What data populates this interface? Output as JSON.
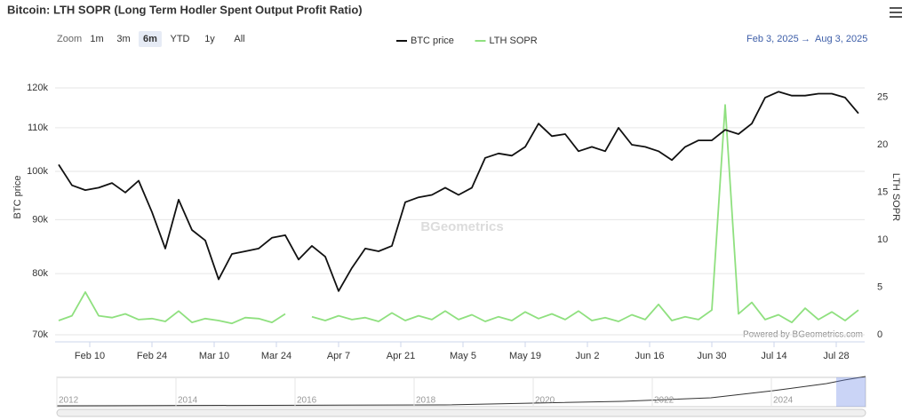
{
  "chart_data": {
    "type": "line",
    "title": "Bitcoin: LTH SOPR (Long Term Hodler Spent Output Profit Ratio)",
    "zoom_label": "Zoom",
    "zoom_buttons": [
      "1m",
      "3m",
      "6m",
      "YTD",
      "1y",
      "All"
    ],
    "zoom_active": "6m",
    "range_from": "Feb 3, 2025",
    "range_separator": "→",
    "range_to": "Aug 3, 2025",
    "watermark": "BGeometrics",
    "credit": "Powered by BGeometrics.com",
    "y_label": "BTC price",
    "y2_label": "LTH SOPR",
    "log_y": true,
    "grid": true,
    "legend": "top",
    "x": [
      "2025-02-03",
      "2025-02-06",
      "2025-02-09",
      "2025-02-12",
      "2025-02-15",
      "2025-02-18",
      "2025-02-21",
      "2025-02-24",
      "2025-02-27",
      "2025-03-02",
      "2025-03-05",
      "2025-03-08",
      "2025-03-11",
      "2025-03-14",
      "2025-03-17",
      "2025-03-20",
      "2025-03-23",
      "2025-03-26",
      "2025-03-29",
      "2025-04-01",
      "2025-04-04",
      "2025-04-07",
      "2025-04-10",
      "2025-04-13",
      "2025-04-16",
      "2025-04-19",
      "2025-04-22",
      "2025-04-25",
      "2025-04-28",
      "2025-05-01",
      "2025-05-04",
      "2025-05-07",
      "2025-05-10",
      "2025-05-13",
      "2025-05-16",
      "2025-05-19",
      "2025-05-22",
      "2025-05-25",
      "2025-05-28",
      "2025-05-31",
      "2025-06-03",
      "2025-06-06",
      "2025-06-09",
      "2025-06-12",
      "2025-06-15",
      "2025-06-18",
      "2025-06-21",
      "2025-06-24",
      "2025-06-27",
      "2025-06-30",
      "2025-07-03",
      "2025-07-06",
      "2025-07-09",
      "2025-07-12",
      "2025-07-15",
      "2025-07-18",
      "2025-07-21",
      "2025-07-24",
      "2025-07-27",
      "2025-07-30",
      "2025-08-02"
    ],
    "xlim": [
      "2025-02-03",
      "2025-08-03"
    ],
    "xticks": [
      {
        "value": "2025-02-10",
        "label": "Feb 10"
      },
      {
        "value": "2025-02-24",
        "label": "Feb 24"
      },
      {
        "value": "2025-03-10",
        "label": "Mar 10"
      },
      {
        "value": "2025-03-24",
        "label": "Mar 24"
      },
      {
        "value": "2025-04-07",
        "label": "Apr 7"
      },
      {
        "value": "2025-04-21",
        "label": "Apr 21"
      },
      {
        "value": "2025-05-05",
        "label": "May 5"
      },
      {
        "value": "2025-05-19",
        "label": "May 19"
      },
      {
        "value": "2025-06-02",
        "label": "Jun 2"
      },
      {
        "value": "2025-06-16",
        "label": "Jun 16"
      },
      {
        "value": "2025-06-30",
        "label": "Jun 30"
      },
      {
        "value": "2025-07-14",
        "label": "Jul 14"
      },
      {
        "value": "2025-07-28",
        "label": "Jul 28"
      }
    ],
    "ylim": [
      70000,
      123300
    ],
    "yticks": [
      {
        "value": 70000,
        "label": "70k"
      },
      {
        "value": 80000,
        "label": "80k"
      },
      {
        "value": 90000,
        "label": "90k"
      },
      {
        "value": 100000,
        "label": "100k"
      },
      {
        "value": 110000,
        "label": "110k"
      },
      {
        "value": 120000,
        "label": "120k"
      }
    ],
    "y2lim": [
      0,
      27.3
    ],
    "y2ticks": [
      0,
      5,
      10,
      15,
      20,
      25
    ],
    "series": [
      {
        "name": "BTC price",
        "color": "#111111",
        "values": [
          101500,
          97000,
          96000,
          96500,
          97500,
          95500,
          98000,
          91500,
          84500,
          94000,
          88000,
          86000,
          79000,
          83500,
          84000,
          84500,
          86500,
          87000,
          82500,
          85000,
          83000,
          77000,
          81000,
          84500,
          84000,
          85000,
          93500,
          94500,
          95000,
          96500,
          95000,
          96500,
          103000,
          104000,
          103500,
          105500,
          111000,
          108000,
          108500,
          104500,
          105500,
          104500,
          110000,
          106000,
          105500,
          104500,
          102500,
          105500,
          107000,
          107000,
          109500,
          108500,
          111000,
          117500,
          119000,
          118000,
          118000,
          118500,
          118500,
          117500,
          113500
        ]
      },
      {
        "name": "LTH SOPR",
        "color": "#8fe07f",
        "axis": "y2",
        "values": [
          1.5,
          2.0,
          4.5,
          2.0,
          1.8,
          2.2,
          1.6,
          1.7,
          1.4,
          2.5,
          1.3,
          1.7,
          1.5,
          1.2,
          1.8,
          1.7,
          1.3,
          2.2,
          null,
          1.9,
          1.5,
          2.0,
          1.6,
          1.8,
          1.4,
          2.3,
          1.5,
          2.0,
          1.6,
          2.5,
          1.6,
          2.1,
          1.4,
          1.9,
          1.5,
          2.4,
          1.7,
          2.2,
          1.6,
          2.5,
          1.5,
          1.8,
          1.4,
          2.1,
          1.6,
          3.2,
          1.5,
          1.9,
          1.6,
          2.6,
          24.2,
          2.2,
          3.4,
          1.6,
          2.1,
          1.3,
          2.8,
          1.6,
          2.4,
          1.5,
          2.6
        ]
      }
    ],
    "navigator_years": [
      "2012",
      "2014",
      "2016",
      "2018",
      "2020",
      "2022",
      "2024"
    ]
  }
}
